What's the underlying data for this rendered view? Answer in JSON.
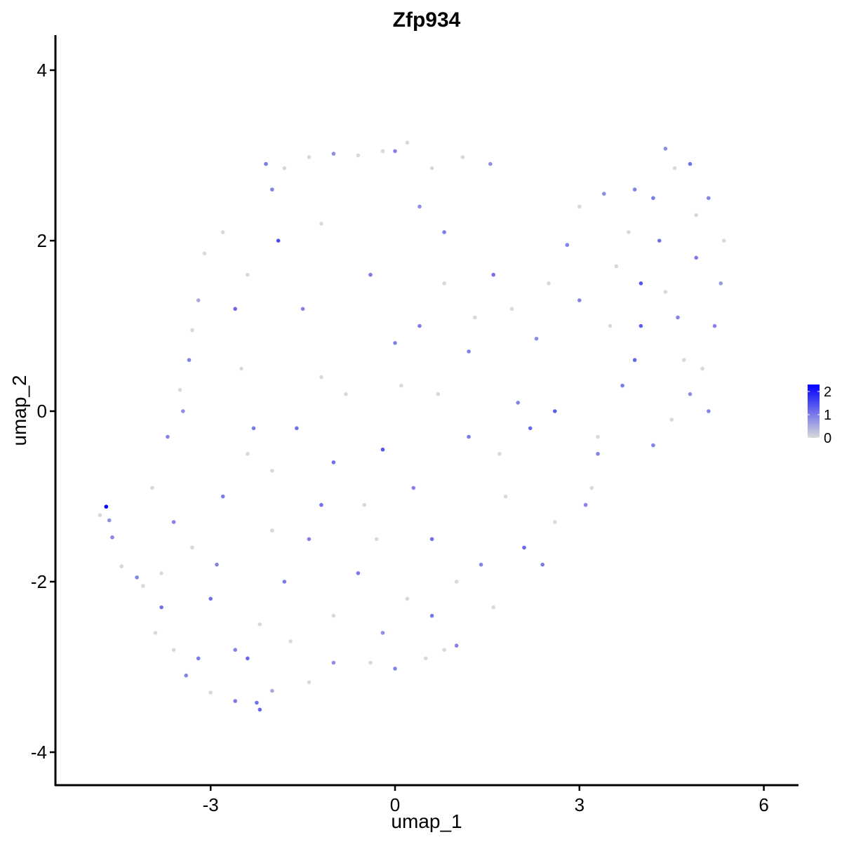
{
  "chart_data": {
    "type": "scatter",
    "title": "Zfp934",
    "xlabel": "umap_1",
    "ylabel": "umap_2",
    "xlim": [
      -5.85,
      6.3
    ],
    "ylim": [
      -4.4,
      4.45
    ],
    "x_ticks": [
      -3,
      0,
      3,
      6
    ],
    "x_tick_labels": [
      "-3",
      "0",
      "3",
      "6"
    ],
    "y_ticks": [
      -4,
      -2,
      0,
      2,
      4
    ],
    "y_tick_labels": [
      "-4",
      "-2",
      "0",
      "2",
      "4"
    ],
    "grid": false,
    "legend": {
      "position": "right",
      "type": "colorbar",
      "ticks": [
        0,
        1,
        2
      ],
      "tick_labels": [
        "0",
        "1",
        "2"
      ],
      "range": [
        0,
        2.3
      ],
      "low_color": "#d9d9d9",
      "high_color": "#0000ff"
    },
    "colors": {
      "low": "#d9d9d9",
      "high": "#0000ff"
    },
    "points": [
      {
        "x": -4.7,
        "y": -1.12,
        "v": 2.3
      },
      {
        "x": -4.8,
        "y": -1.22,
        "v": 0
      },
      {
        "x": -4.65,
        "y": -1.28,
        "v": 0.8
      },
      {
        "x": -4.6,
        "y": -1.48,
        "v": 0.9
      },
      {
        "x": -4.45,
        "y": -1.82,
        "v": 0
      },
      {
        "x": -4.2,
        "y": -1.95,
        "v": 0.9
      },
      {
        "x": -4.1,
        "y": -2.05,
        "v": 0
      },
      {
        "x": -3.9,
        "y": -2.6,
        "v": 0
      },
      {
        "x": -3.8,
        "y": -2.3,
        "v": 1.1
      },
      {
        "x": -3.6,
        "y": -2.8,
        "v": 0
      },
      {
        "x": -3.4,
        "y": -3.1,
        "v": 0.9
      },
      {
        "x": -3.0,
        "y": -3.3,
        "v": 0
      },
      {
        "x": -2.6,
        "y": -3.4,
        "v": 1.0
      },
      {
        "x": -2.2,
        "y": -3.5,
        "v": 1.2
      },
      {
        "x": -2.25,
        "y": -3.42,
        "v": 1.1
      },
      {
        "x": -2.0,
        "y": -3.28,
        "v": 0.5
      },
      {
        "x": -1.4,
        "y": -3.18,
        "v": 0
      },
      {
        "x": -1.0,
        "y": -2.95,
        "v": 0.8
      },
      {
        "x": -0.4,
        "y": -2.95,
        "v": 0
      },
      {
        "x": 0.0,
        "y": -3.02,
        "v": 0.9
      },
      {
        "x": 0.5,
        "y": -2.9,
        "v": 0
      },
      {
        "x": 0.8,
        "y": -2.8,
        "v": 0
      },
      {
        "x": 1.0,
        "y": -2.75,
        "v": 0.9
      },
      {
        "x": -2.1,
        "y": 2.9,
        "v": 1.0
      },
      {
        "x": -1.8,
        "y": 2.85,
        "v": 0
      },
      {
        "x": -1.4,
        "y": 2.98,
        "v": 0
      },
      {
        "x": -1.0,
        "y": 3.02,
        "v": 0.8
      },
      {
        "x": -0.6,
        "y": 3.0,
        "v": 0
      },
      {
        "x": -0.2,
        "y": 3.05,
        "v": 0
      },
      {
        "x": 0.0,
        "y": 3.05,
        "v": 0.9
      },
      {
        "x": 0.2,
        "y": 3.15,
        "v": 0
      },
      {
        "x": 0.6,
        "y": 2.85,
        "v": 0
      },
      {
        "x": 1.1,
        "y": 2.98,
        "v": 0
      },
      {
        "x": 1.55,
        "y": 2.9,
        "v": 0.8
      },
      {
        "x": -2.8,
        "y": 2.1,
        "v": 0
      },
      {
        "x": -3.1,
        "y": 1.85,
        "v": 0
      },
      {
        "x": -3.2,
        "y": 1.3,
        "v": 0.5
      },
      {
        "x": -3.3,
        "y": 0.95,
        "v": 0
      },
      {
        "x": -3.35,
        "y": 0.6,
        "v": 0.9
      },
      {
        "x": -3.45,
        "y": 0.0,
        "v": 0.8
      },
      {
        "x": -3.5,
        "y": 0.25,
        "v": 0
      },
      {
        "x": -3.7,
        "y": -0.3,
        "v": 0.9
      },
      {
        "x": -3.95,
        "y": -0.9,
        "v": 0
      },
      {
        "x": -2.6,
        "y": 1.2,
        "v": 1.2
      },
      {
        "x": -2.5,
        "y": 0.5,
        "v": 0
      },
      {
        "x": -2.3,
        "y": -0.2,
        "v": 1.0
      },
      {
        "x": -2.0,
        "y": -0.7,
        "v": 0
      },
      {
        "x": -1.9,
        "y": 2.0,
        "v": 1.5
      },
      {
        "x": -1.5,
        "y": 1.2,
        "v": 0.9
      },
      {
        "x": -1.2,
        "y": 0.4,
        "v": 0
      },
      {
        "x": -1.0,
        "y": -0.6,
        "v": 1.1
      },
      {
        "x": -0.5,
        "y": -1.1,
        "v": 0
      },
      {
        "x": -0.2,
        "y": -0.45,
        "v": 1.4
      },
      {
        "x": 0.1,
        "y": 0.3,
        "v": 0
      },
      {
        "x": 0.4,
        "y": 1.0,
        "v": 1.0
      },
      {
        "x": 0.8,
        "y": 1.5,
        "v": 0
      },
      {
        "x": 1.2,
        "y": 0.7,
        "v": 0.9
      },
      {
        "x": 1.6,
        "y": 1.6,
        "v": 1.1
      },
      {
        "x": 1.9,
        "y": 1.2,
        "v": 0
      },
      {
        "x": 2.3,
        "y": 0.85,
        "v": 0.8
      },
      {
        "x": 2.5,
        "y": 1.5,
        "v": 0
      },
      {
        "x": 2.8,
        "y": 1.95,
        "v": 0.9
      },
      {
        "x": 3.0,
        "y": 2.4,
        "v": 0
      },
      {
        "x": 3.4,
        "y": 2.55,
        "v": 0.8
      },
      {
        "x": 3.8,
        "y": 2.1,
        "v": 0
      },
      {
        "x": 4.2,
        "y": 2.5,
        "v": 1.0
      },
      {
        "x": 4.4,
        "y": 3.08,
        "v": 0.8
      },
      {
        "x": 4.55,
        "y": 2.85,
        "v": 0
      },
      {
        "x": 4.8,
        "y": 2.9,
        "v": 1.1
      },
      {
        "x": 5.1,
        "y": 2.5,
        "v": 0.9
      },
      {
        "x": 5.35,
        "y": 2.0,
        "v": 0
      },
      {
        "x": 5.3,
        "y": 1.5,
        "v": 0.7
      },
      {
        "x": 5.2,
        "y": 1.0,
        "v": 0.9
      },
      {
        "x": 5.0,
        "y": 0.5,
        "v": 0
      },
      {
        "x": 4.8,
        "y": 0.2,
        "v": 0.8
      },
      {
        "x": 4.5,
        "y": -0.1,
        "v": 0
      },
      {
        "x": 4.2,
        "y": -0.4,
        "v": 0.9
      },
      {
        "x": 3.9,
        "y": 0.6,
        "v": 1.2
      },
      {
        "x": 3.5,
        "y": 1.0,
        "v": 0
      },
      {
        "x": 3.3,
        "y": -0.5,
        "v": 0.9
      },
      {
        "x": 3.2,
        "y": -0.9,
        "v": 0
      },
      {
        "x": 3.1,
        "y": -1.1,
        "v": 0.9
      },
      {
        "x": 2.6,
        "y": -1.3,
        "v": 0
      },
      {
        "x": 2.4,
        "y": -1.8,
        "v": 1.0
      },
      {
        "x": 2.2,
        "y": -0.2,
        "v": 1.2
      },
      {
        "x": 1.8,
        "y": -1.0,
        "v": 0
      },
      {
        "x": 1.4,
        "y": -1.8,
        "v": 0.9
      },
      {
        "x": 1.0,
        "y": -2.0,
        "v": 0
      },
      {
        "x": 0.6,
        "y": -1.5,
        "v": 1.1
      },
      {
        "x": 0.2,
        "y": -2.2,
        "v": 0
      },
      {
        "x": -0.2,
        "y": -2.6,
        "v": 0.8
      },
      {
        "x": -0.6,
        "y": -1.9,
        "v": 1.0
      },
      {
        "x": -1.0,
        "y": -2.4,
        "v": 0
      },
      {
        "x": -1.4,
        "y": -1.5,
        "v": 0.9
      },
      {
        "x": -1.8,
        "y": -2.0,
        "v": 1.0
      },
      {
        "x": -2.2,
        "y": -2.5,
        "v": 0
      },
      {
        "x": -2.6,
        "y": -2.8,
        "v": 0.9
      },
      {
        "x": -3.0,
        "y": -2.2,
        "v": 1.1
      },
      {
        "x": -3.3,
        "y": -1.6,
        "v": 0
      },
      {
        "x": -3.6,
        "y": -1.3,
        "v": 0.9
      },
      {
        "x": -2.8,
        "y": -1.0,
        "v": 1.0
      },
      {
        "x": -2.4,
        "y": -0.5,
        "v": 0
      },
      {
        "x": -1.6,
        "y": -0.2,
        "v": 1.1
      },
      {
        "x": -0.8,
        "y": 0.2,
        "v": 0
      },
      {
        "x": 0.0,
        "y": 0.8,
        "v": 0.9
      },
      {
        "x": -0.4,
        "y": 1.6,
        "v": 1.0
      },
      {
        "x": -1.2,
        "y": 2.2,
        "v": 0
      },
      {
        "x": -2.0,
        "y": 2.6,
        "v": 0.9
      },
      {
        "x": -2.4,
        "y": 1.6,
        "v": 0
      },
      {
        "x": 0.4,
        "y": 2.4,
        "v": 0.8
      },
      {
        "x": 0.8,
        "y": 2.1,
        "v": 1.0
      },
      {
        "x": 1.3,
        "y": 1.1,
        "v": 0
      },
      {
        "x": 2.0,
        "y": 0.1,
        "v": 0.9
      },
      {
        "x": 2.6,
        "y": 0.0,
        "v": 1.3
      },
      {
        "x": 4.0,
        "y": 1.0,
        "v": 1.3
      },
      {
        "x": 4.4,
        "y": 1.4,
        "v": 0
      },
      {
        "x": 4.6,
        "y": 1.1,
        "v": 0.9
      },
      {
        "x": 4.9,
        "y": 1.8,
        "v": 1.0
      },
      {
        "x": 4.0,
        "y": 1.5,
        "v": 1.4
      },
      {
        "x": 3.6,
        "y": 1.7,
        "v": 0
      },
      {
        "x": 3.0,
        "y": 1.3,
        "v": 0.9
      },
      {
        "x": 1.7,
        "y": -0.5,
        "v": 0
      },
      {
        "x": 1.2,
        "y": -0.3,
        "v": 1.0
      },
      {
        "x": 0.7,
        "y": 0.2,
        "v": 0
      },
      {
        "x": 0.3,
        "y": -0.9,
        "v": 0.9
      },
      {
        "x": -0.3,
        "y": -1.5,
        "v": 0
      },
      {
        "x": -1.2,
        "y": -1.1,
        "v": 1.1
      },
      {
        "x": -2.0,
        "y": -1.4,
        "v": 0
      },
      {
        "x": -2.9,
        "y": -1.8,
        "v": 0.9
      },
      {
        "x": -3.8,
        "y": -1.9,
        "v": 0
      },
      {
        "x": -3.2,
        "y": -2.9,
        "v": 1.0
      },
      {
        "x": -2.4,
        "y": -2.9,
        "v": 1.2
      },
      {
        "x": -1.7,
        "y": -2.7,
        "v": 0
      },
      {
        "x": 0.6,
        "y": -2.4,
        "v": 1.0
      },
      {
        "x": 1.6,
        "y": -2.3,
        "v": 0
      },
      {
        "x": 2.1,
        "y": -1.6,
        "v": 1.2
      },
      {
        "x": 3.3,
        "y": -0.3,
        "v": 0
      },
      {
        "x": 3.7,
        "y": 0.3,
        "v": 1.0
      },
      {
        "x": 4.7,
        "y": 0.6,
        "v": 0
      },
      {
        "x": 5.1,
        "y": 0.0,
        "v": 0.9
      },
      {
        "x": 4.3,
        "y": 2.0,
        "v": 1.1
      },
      {
        "x": 4.9,
        "y": 2.3,
        "v": 0
      },
      {
        "x": 3.9,
        "y": 2.6,
        "v": 0.9
      }
    ]
  }
}
